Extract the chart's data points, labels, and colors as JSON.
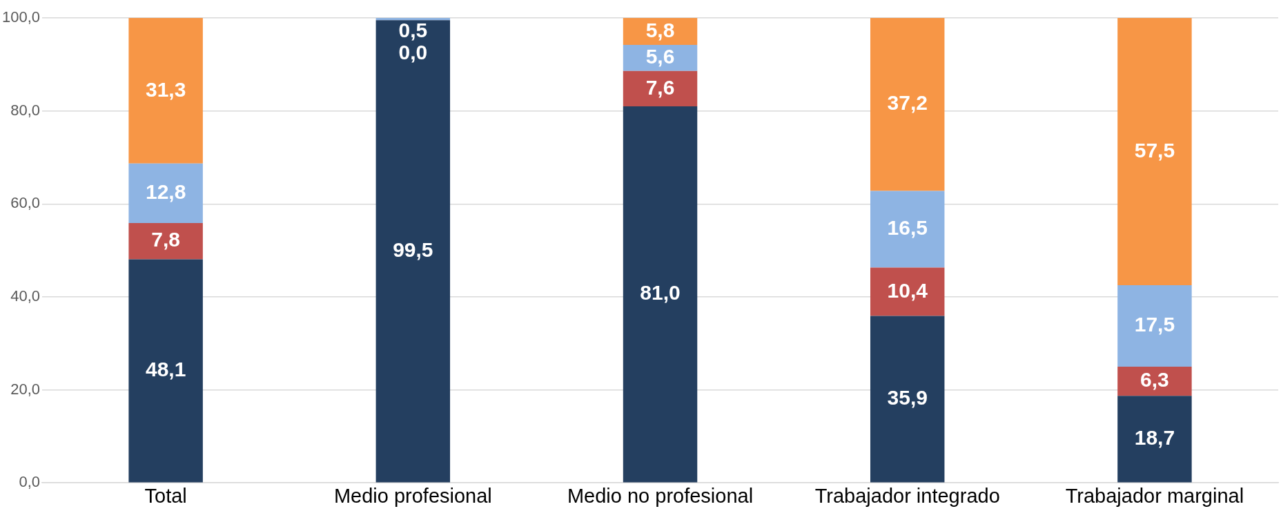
{
  "chart_data": {
    "type": "bar",
    "stacked": true,
    "categories": [
      "Total",
      "Medio profesional",
      "Medio no profesional",
      "Trabajador integrado",
      "Trabajador marginal"
    ],
    "series": [
      {
        "color": "#243f60",
        "values": [
          48.1,
          99.5,
          81.0,
          35.9,
          18.7
        ],
        "value_labels": [
          "48,1",
          "99,5",
          "81,0",
          "35,9",
          "18,7"
        ]
      },
      {
        "color": "#c0504d",
        "values": [
          7.8,
          0.0,
          7.6,
          10.4,
          6.3
        ],
        "value_labels": [
          "7,8",
          "0,0",
          "7,6",
          "10,4",
          "6,3"
        ]
      },
      {
        "color": "#8eb4e3",
        "values": [
          12.8,
          0.5,
          5.6,
          16.5,
          17.5
        ],
        "value_labels": [
          "12,8",
          "0,5",
          "5,6",
          "16,5",
          "17,5"
        ]
      },
      {
        "color": "#f79646",
        "values": [
          31.3,
          null,
          5.8,
          37.2,
          57.5
        ],
        "value_labels": [
          "31,3",
          null,
          "5,8",
          "37,2",
          "57,5"
        ]
      }
    ],
    "ylim": [
      0,
      100
    ],
    "yticks": [
      {
        "value": 0,
        "label": "0,0"
      },
      {
        "value": 20,
        "label": "20,0"
      },
      {
        "value": 40,
        "label": "40,0"
      },
      {
        "value": 60,
        "label": "60,0"
      },
      {
        "value": 80,
        "label": "80,0"
      },
      {
        "value": 100,
        "label": "100,0"
      }
    ],
    "grid": "y",
    "legend": false
  }
}
